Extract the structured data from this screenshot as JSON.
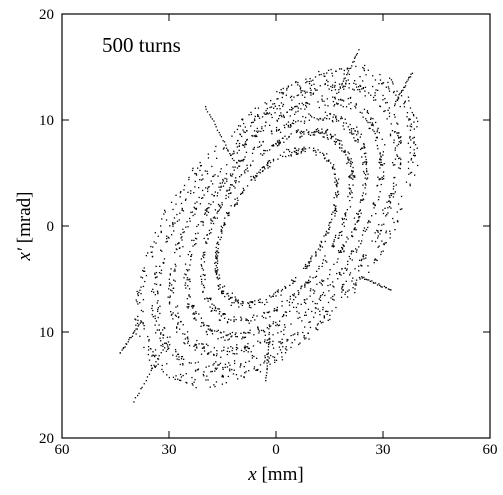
{
  "chart_data": {
    "type": "scatter",
    "title": "",
    "annotation": "500 turns",
    "xlabel_var": "x",
    "xlabel_unit": " [mm]",
    "ylabel_var": "x′",
    "ylabel_unit": " [mrad]",
    "xlim": [
      -60,
      60
    ],
    "ylim": [
      -20,
      20
    ],
    "x_ticks": [
      -60,
      -30,
      0,
      30,
      60
    ],
    "x_tick_labels": [
      "60",
      "30",
      "0",
      "30",
      "60"
    ],
    "y_ticks": [
      20,
      10,
      0,
      -10,
      -20
    ],
    "y_tick_labels": [
      "20",
      "10",
      "0",
      "10",
      "20"
    ],
    "grid": false,
    "marker_color": "#000000",
    "series": [
      {
        "description": "phase-space ellipses",
        "rings": [
          {
            "rx": 17.0,
            "ry": 6.4,
            "tilt_slope": 0.205,
            "points": 330
          },
          {
            "rx": 21.0,
            "ry": 7.8,
            "tilt_slope": 0.205,
            "points": 380
          },
          {
            "rx": 25.0,
            "ry": 9.0,
            "tilt_slope": 0.205,
            "points": 420
          },
          {
            "rx": 29.5,
            "ry": 10.2,
            "tilt_slope": 0.205,
            "points": 460
          },
          {
            "rx": 34.0,
            "ry": 11.4,
            "tilt_slope": 0.205,
            "points": 480
          },
          {
            "rx": 38.5,
            "ry": 12.3,
            "tilt_slope": 0.205,
            "points": 420
          }
        ],
        "tails": [
          {
            "x": [
              23,
              17
            ],
            "y": [
              16.6,
              12.5
            ]
          },
          {
            "x": [
              -20,
              -12
            ],
            "y": [
              11.4,
              6.2
            ]
          },
          {
            "x": [
              -44,
              -38
            ],
            "y": [
              -12,
              -9
            ]
          },
          {
            "x": [
              -40,
              -30
            ],
            "y": [
              -16.5,
              -10.5
            ]
          },
          {
            "x": [
              -3,
              -2
            ],
            "y": [
              -14.5,
              -9.5
            ]
          },
          {
            "x": [
              32,
              24
            ],
            "y": [
              -6,
              -4.8
            ]
          },
          {
            "x": [
              38,
              33
            ],
            "y": [
              14.5,
              11.5
            ]
          }
        ]
      }
    ]
  }
}
